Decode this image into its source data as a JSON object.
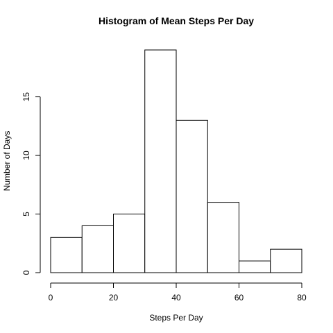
{
  "chart_data": {
    "type": "bar",
    "title": "Histogram of Mean Steps Per Day",
    "xlabel": "Steps Per Day",
    "ylabel": "Number of Days",
    "bins": [
      {
        "start": 0,
        "end": 10,
        "count": 3
      },
      {
        "start": 10,
        "end": 20,
        "count": 4
      },
      {
        "start": 20,
        "end": 30,
        "count": 5
      },
      {
        "start": 30,
        "end": 40,
        "count": 19
      },
      {
        "start": 40,
        "end": 50,
        "count": 13
      },
      {
        "start": 50,
        "end": 60,
        "count": 6
      },
      {
        "start": 60,
        "end": 70,
        "count": 1
      },
      {
        "start": 70,
        "end": 80,
        "count": 2
      }
    ],
    "xlim": [
      0,
      80
    ],
    "ylim": [
      0,
      19
    ],
    "x_ticks": [
      0,
      20,
      40,
      60,
      80
    ],
    "y_ticks": [
      0,
      5,
      10,
      15
    ],
    "grid": false,
    "bar_color": "#ffffff",
    "edge_color": "#000000"
  }
}
